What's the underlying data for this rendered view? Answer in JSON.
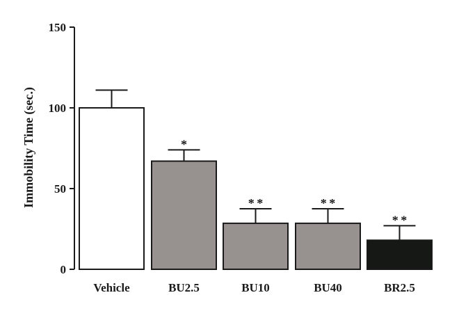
{
  "chart_data": {
    "type": "bar",
    "title": "",
    "xlabel": "",
    "ylabel": "Immobility Time (sec.)",
    "ylim": [
      0,
      150
    ],
    "yticks": [
      0,
      50,
      100,
      150
    ],
    "categories": [
      "Vehicle",
      "BU2.5",
      "BU10",
      "BU40",
      "BR2.5"
    ],
    "values": [
      100,
      67,
      28.5,
      28.5,
      18
    ],
    "errors": [
      11,
      7,
      9,
      9,
      9
    ],
    "significance": [
      "",
      "*",
      "**",
      "**",
      "**"
    ],
    "colors": [
      "#ffffff",
      "#979190",
      "#979190",
      "#979190",
      "#161816"
    ],
    "edge_color": "#1a1a1a",
    "grid": false
  }
}
